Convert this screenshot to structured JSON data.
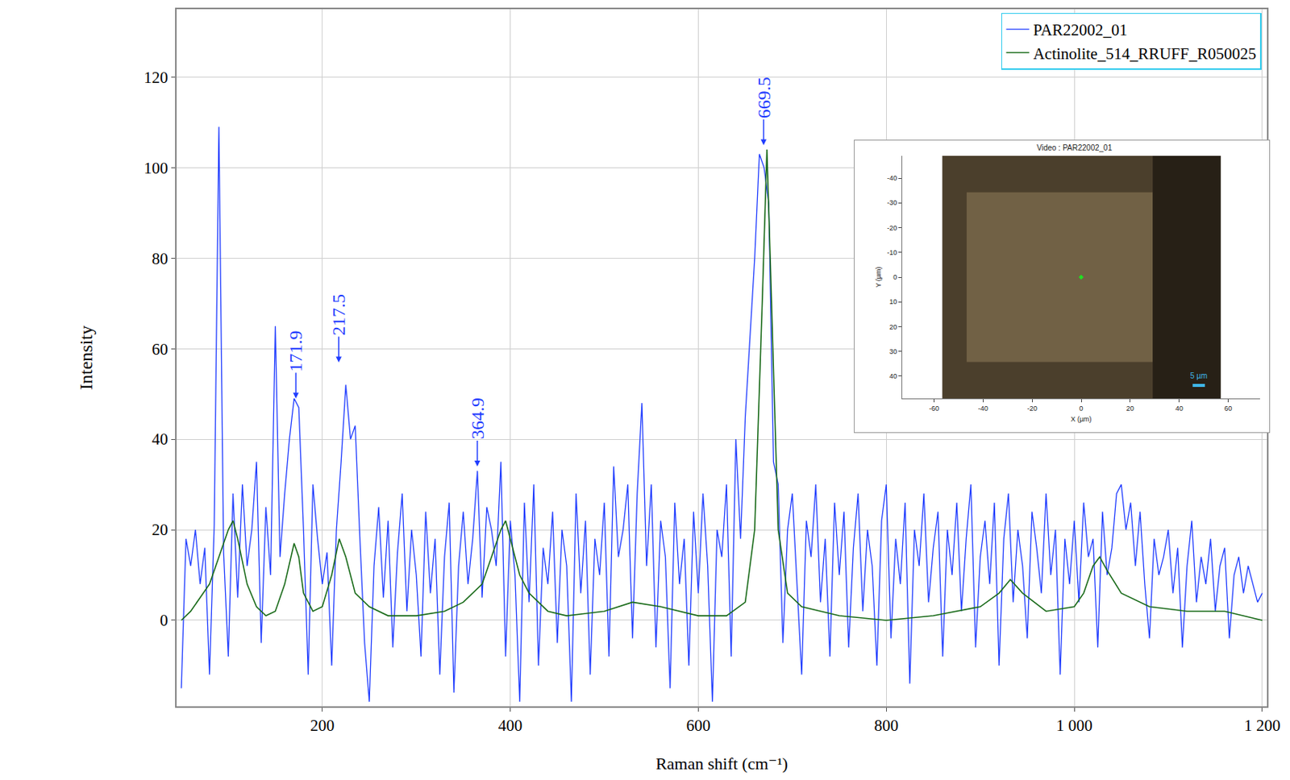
{
  "chart_data": [
    {
      "type": "line",
      "x_label": "Raman shift (cm⁻¹)",
      "y_label": "Intensity",
      "xlim": [
        45,
        1205
      ],
      "ylim": [
        -19,
        135
      ],
      "xticks": [
        200,
        400,
        600,
        800,
        {
          "value": 1000,
          "label": "1 000"
        },
        {
          "value": 1200,
          "label": "1 200"
        }
      ],
      "yticks": [
        0,
        20,
        40,
        60,
        80,
        100,
        120
      ],
      "grid": true,
      "legend": "upper right",
      "series": [
        {
          "name": "PAR22002_01",
          "color": "#1f3cff",
          "x": [
            50,
            55,
            60,
            65,
            70,
            75,
            80,
            85,
            90,
            95,
            100,
            105,
            110,
            115,
            120,
            125,
            130,
            135,
            140,
            145,
            150,
            155,
            160,
            165,
            170,
            175,
            180,
            185,
            190,
            195,
            200,
            205,
            210,
            215,
            220,
            225,
            230,
            235,
            240,
            245,
            250,
            255,
            260,
            265,
            270,
            275,
            280,
            285,
            290,
            295,
            300,
            305,
            310,
            315,
            320,
            325,
            330,
            335,
            340,
            345,
            350,
            355,
            360,
            365,
            370,
            375,
            380,
            385,
            390,
            395,
            400,
            405,
            410,
            415,
            420,
            425,
            430,
            435,
            440,
            445,
            450,
            455,
            460,
            465,
            470,
            475,
            480,
            485,
            490,
            495,
            500,
            505,
            510,
            515,
            520,
            525,
            530,
            535,
            540,
            545,
            550,
            555,
            560,
            565,
            570,
            575,
            580,
            585,
            590,
            595,
            600,
            605,
            610,
            615,
            620,
            625,
            630,
            635,
            640,
            645,
            650,
            655,
            660,
            665,
            670,
            675,
            680,
            685,
            690,
            695,
            700,
            705,
            710,
            715,
            720,
            725,
            730,
            735,
            740,
            745,
            750,
            755,
            760,
            765,
            770,
            775,
            780,
            785,
            790,
            795,
            800,
            805,
            810,
            815,
            820,
            825,
            830,
            835,
            840,
            845,
            850,
            855,
            860,
            865,
            870,
            875,
            880,
            885,
            890,
            895,
            900,
            905,
            910,
            915,
            920,
            925,
            930,
            935,
            940,
            945,
            950,
            955,
            960,
            965,
            970,
            975,
            980,
            985,
            990,
            995,
            1000,
            1005,
            1010,
            1015,
            1020,
            1025,
            1030,
            1035,
            1040,
            1045,
            1050,
            1055,
            1060,
            1065,
            1070,
            1075,
            1080,
            1085,
            1090,
            1095,
            1100,
            1105,
            1110,
            1115,
            1120,
            1125,
            1130,
            1135,
            1140,
            1145,
            1150,
            1155,
            1160,
            1165,
            1170,
            1175,
            1180,
            1185,
            1190,
            1195,
            1200
          ],
          "values": [
            -15,
            18,
            12,
            20,
            8,
            16,
            -12,
            21,
            109,
            15,
            -8,
            28,
            5,
            30,
            12,
            20,
            35,
            -5,
            25,
            10,
            65,
            14,
            28,
            40,
            49,
            47,
            20,
            -12,
            30,
            18,
            8,
            15,
            -10,
            20,
            35,
            52,
            40,
            43,
            18,
            -5,
            -18,
            12,
            25,
            5,
            22,
            -6,
            15,
            28,
            2,
            20,
            10,
            -8,
            24,
            6,
            18,
            -12,
            14,
            26,
            -16,
            12,
            24,
            8,
            18,
            33,
            5,
            25,
            20,
            12,
            35,
            -8,
            22,
            10,
            -18,
            26,
            4,
            30,
            -10,
            16,
            8,
            24,
            -5,
            20,
            12,
            -18,
            28,
            6,
            22,
            -12,
            18,
            10,
            26,
            -8,
            34,
            14,
            20,
            30,
            -4,
            28,
            48,
            12,
            30,
            -6,
            22,
            14,
            -15,
            26,
            8,
            18,
            -10,
            24,
            6,
            28,
            12,
            -18,
            20,
            14,
            30,
            -8,
            40,
            18,
            45,
            62,
            80,
            103,
            100,
            92,
            35,
            30,
            -5,
            20,
            28,
            8,
            -12,
            22,
            14,
            30,
            4,
            18,
            -8,
            26,
            10,
            24,
            -6,
            16,
            28,
            2,
            20,
            12,
            -10,
            22,
            30,
            -4,
            18,
            8,
            26,
            -14,
            20,
            12,
            28,
            4,
            16,
            24,
            -8,
            20,
            10,
            26,
            2,
            18,
            30,
            -6,
            14,
            22,
            8,
            26,
            -10,
            18,
            28,
            4,
            20,
            12,
            -4,
            24,
            16,
            6,
            28,
            10,
            20,
            -12,
            18,
            8,
            22,
            4,
            26,
            14,
            18,
            -6,
            24,
            10,
            16,
            28,
            30,
            20,
            26,
            12,
            24,
            8,
            -4,
            18,
            10,
            14,
            20,
            6,
            16,
            -6,
            12,
            22,
            4,
            14,
            8,
            18,
            2,
            12,
            16,
            -4,
            10,
            14,
            6,
            12,
            8,
            4,
            6
          ]
        },
        {
          "name": "Actinolite_514_RRUFF_R050025",
          "color": "#1a6b1a",
          "x": [
            50,
            60,
            70,
            80,
            90,
            100,
            105,
            110,
            120,
            130,
            140,
            150,
            160,
            170,
            175,
            180,
            190,
            200,
            210,
            218,
            225,
            235,
            250,
            270,
            300,
            330,
            350,
            370,
            380,
            390,
            395,
            400,
            410,
            420,
            440,
            460,
            500,
            530,
            560,
            600,
            630,
            650,
            660,
            668,
            673,
            678,
            685,
            695,
            710,
            750,
            800,
            850,
            900,
            920,
            932,
            945,
            970,
            1000,
            1010,
            1020,
            1027,
            1035,
            1050,
            1080,
            1120,
            1160,
            1200
          ],
          "values": [
            0,
            2,
            5,
            8,
            14,
            20,
            22,
            18,
            8,
            3,
            1,
            2,
            8,
            17,
            14,
            6,
            2,
            3,
            10,
            18,
            14,
            6,
            3,
            1,
            1,
            2,
            4,
            8,
            14,
            20,
            22,
            18,
            10,
            6,
            2,
            1,
            2,
            4,
            3,
            1,
            1,
            4,
            20,
            70,
            104,
            70,
            20,
            6,
            3,
            1,
            0,
            1,
            3,
            6,
            9,
            6,
            2,
            3,
            6,
            12,
            14,
            11,
            6,
            3,
            2,
            2,
            0
          ]
        }
      ],
      "annotations": [
        {
          "text": "171.9",
          "x": 171.9,
          "y": 49
        },
        {
          "text": "217.5",
          "x": 217.5,
          "y": 57
        },
        {
          "text": "364.9",
          "x": 364.9,
          "y": 34
        },
        {
          "text": "669.5",
          "x": 669.5,
          "y": 105
        }
      ]
    },
    {
      "type": "scatter",
      "title": "Video : PAR22002_01",
      "x_label": "X (µm)",
      "y_label": "Y (µm)",
      "x": [
        0
      ],
      "values": [
        0
      ],
      "color": "#22dd22",
      "xlim": [
        -73,
        73
      ],
      "ylim": [
        49,
        -49
      ],
      "xticks": [
        -60,
        -40,
        -20,
        0,
        20,
        40,
        60
      ],
      "yticks": [
        -40,
        -30,
        -20,
        -10,
        0,
        10,
        20,
        30,
        40
      ],
      "annotations": [
        {
          "text": "5 µm",
          "x": 48,
          "y": 40
        }
      ]
    }
  ]
}
